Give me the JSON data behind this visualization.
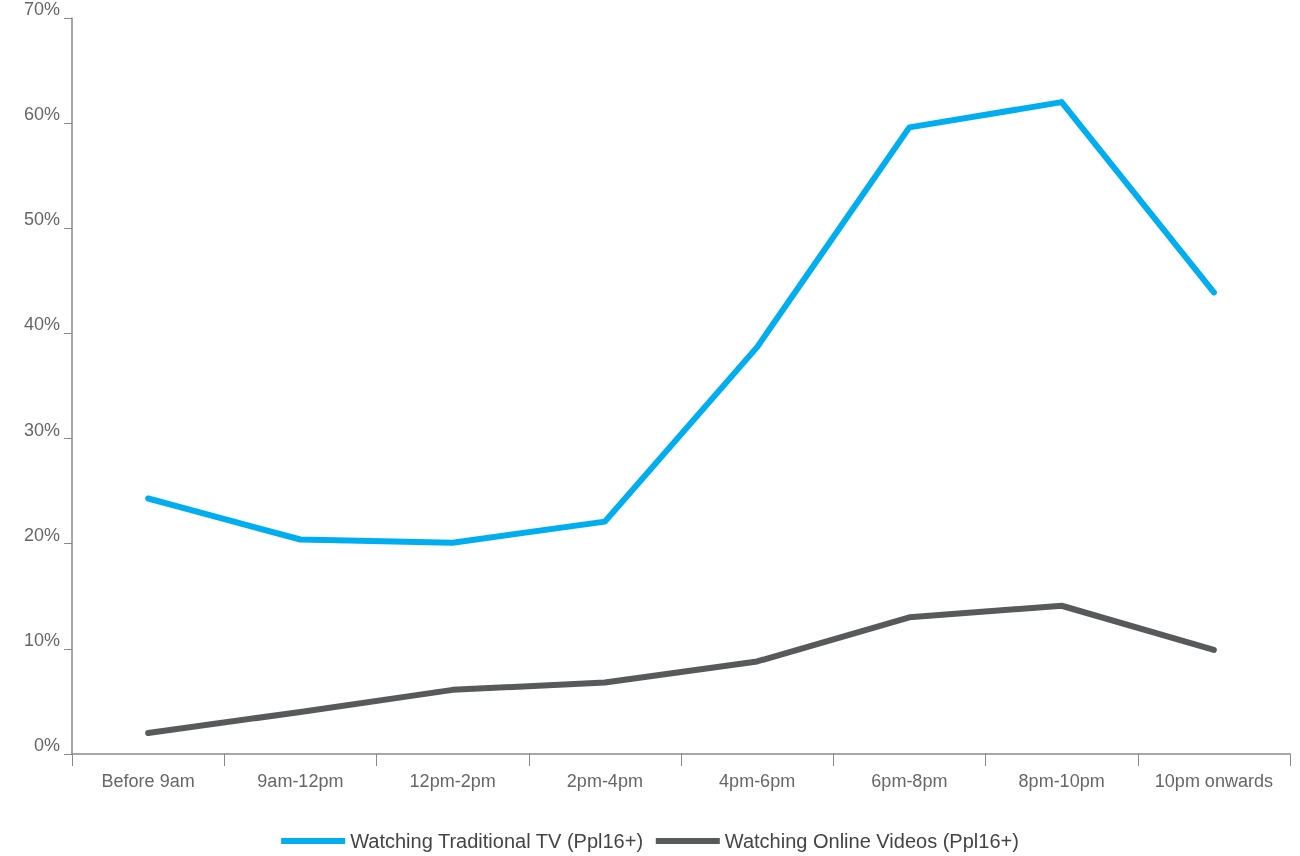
{
  "chart_data": {
    "type": "line",
    "categories": [
      "Before 9am",
      "9am-12pm",
      "12pm-2pm",
      "2pm-4pm",
      "4pm-6pm",
      "6pm-8pm",
      "8pm-10pm",
      "10pm onwards"
    ],
    "series": [
      {
        "name": "Watching Traditional TV (Ppl16+)",
        "color": "#00aeef",
        "values": [
          24.3,
          20.4,
          20.1,
          22.1,
          38.7,
          59.6,
          62.0,
          43.9
        ]
      },
      {
        "name": "Watching Online Videos (Ppl16+)",
        "color": "#58595b",
        "values": [
          2.0,
          4.0,
          6.1,
          6.8,
          8.8,
          13.0,
          14.1,
          9.9
        ]
      }
    ],
    "ylim": [
      0,
      70
    ],
    "yticks": [
      {
        "value": 0,
        "label": "0%"
      },
      {
        "value": 10,
        "label": "10%"
      },
      {
        "value": 20,
        "label": "20%"
      },
      {
        "value": 30,
        "label": "30%"
      },
      {
        "value": 40,
        "label": "40%"
      },
      {
        "value": 50,
        "label": "50%"
      },
      {
        "value": 60,
        "label": "60%"
      },
      {
        "value": 70,
        "label": "70%"
      }
    ],
    "grid": false,
    "legend": "bottom",
    "marker": "none",
    "line_style": "solid"
  }
}
